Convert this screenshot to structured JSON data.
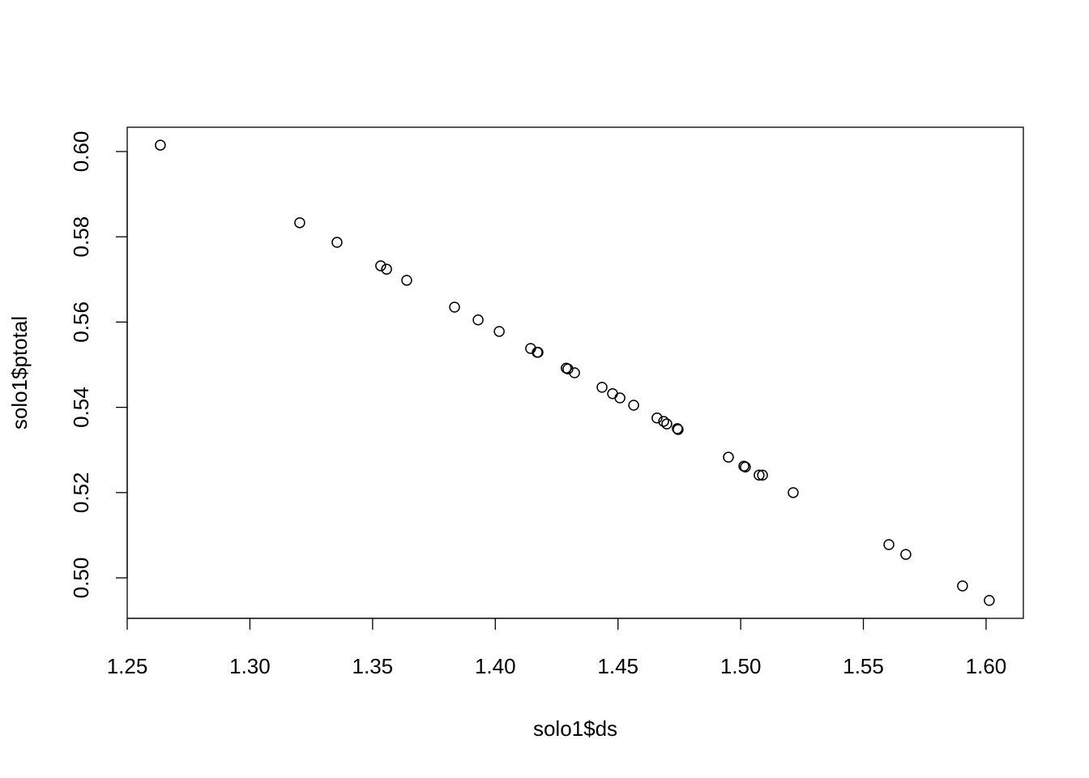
{
  "chart_data": {
    "type": "scatter",
    "x_label": "solo1$ds",
    "y_label": "solo1$ptotal",
    "color": "#000000",
    "x": [
      1.2635,
      1.3203,
      1.3355,
      1.3533,
      1.3557,
      1.3639,
      1.3834,
      1.393,
      1.4016,
      1.4144,
      1.4171,
      1.4174,
      1.4289,
      1.4296,
      1.4323,
      1.4435,
      1.4478,
      1.4508,
      1.4564,
      1.4659,
      1.4686,
      1.4699,
      1.4742,
      1.4745,
      1.495,
      1.5013,
      1.5019,
      1.5075,
      1.5089,
      1.5214,
      1.5604,
      1.5673,
      1.5904,
      1.6013
    ],
    "y": [
      0.6015,
      0.5833,
      0.5787,
      0.5732,
      0.5724,
      0.5698,
      0.5635,
      0.5605,
      0.5578,
      0.5538,
      0.5529,
      0.5529,
      0.5492,
      0.549,
      0.5481,
      0.5447,
      0.5432,
      0.5422,
      0.5405,
      0.5375,
      0.5367,
      0.5361,
      0.535,
      0.5348,
      0.5283,
      0.5262,
      0.526,
      0.5241,
      0.5241,
      0.52,
      0.5078,
      0.5055,
      0.4981,
      0.4947
    ],
    "xlim": [
      1.25,
      1.6152
    ],
    "ylim": [
      0.4905,
      0.6057
    ],
    "xticks": [
      {
        "value": 1.25,
        "label": "1.25"
      },
      {
        "value": 1.3,
        "label": "1.30"
      },
      {
        "value": 1.35,
        "label": "1.35"
      },
      {
        "value": 1.4,
        "label": "1.40"
      },
      {
        "value": 1.45,
        "label": "1.45"
      },
      {
        "value": 1.5,
        "label": "1.50"
      },
      {
        "value": 1.55,
        "label": "1.55"
      },
      {
        "value": 1.6,
        "label": "1.60"
      }
    ],
    "yticks": [
      {
        "value": 0.5,
        "label": "0.50"
      },
      {
        "value": 0.52,
        "label": "0.52"
      },
      {
        "value": 0.54,
        "label": "0.54"
      },
      {
        "value": 0.56,
        "label": "0.56"
      },
      {
        "value": 0.58,
        "label": "0.58"
      },
      {
        "value": 0.6,
        "label": "0.60"
      }
    ]
  }
}
